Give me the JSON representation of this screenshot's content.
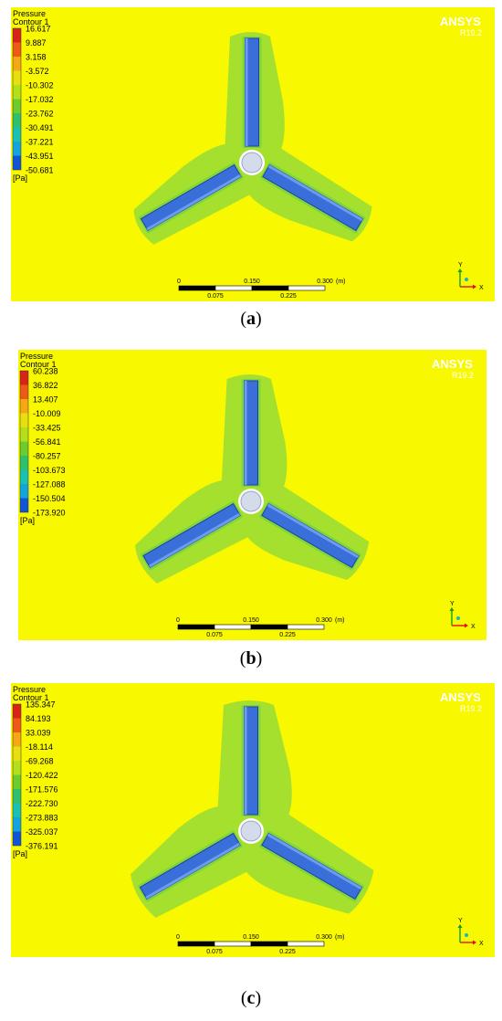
{
  "brand": "ANSYS",
  "version": "R19.2",
  "colors": {
    "background": "#f8f800",
    "halo": "#a6e02e",
    "halo_inner": "#7dd63a",
    "blade": "#3a6fd9",
    "blade_edge": "#1f3fa8",
    "hub": "#d4dcec",
    "legend": [
      "#d8231b",
      "#ee5a16",
      "#f5a716",
      "#e7df10",
      "#b3e01e",
      "#6ccb2e",
      "#2fc06d",
      "#1ac0b3",
      "#12a4df",
      "#1155d6",
      "#1515b7"
    ]
  },
  "legend_title": "Pressure",
  "legend_subtitle": "Contour 1",
  "legend_unit": "[Pa]",
  "scale": {
    "top_labels": [
      "0",
      "0.150",
      "0.300"
    ],
    "unit": "(m)",
    "bottom_labels": [
      "0.075",
      "0.225"
    ]
  },
  "axis": {
    "x": "X",
    "y": "Y"
  },
  "panels": [
    {
      "id": "a",
      "caption_pre": "(",
      "caption_letter": "a",
      "caption_post": ")",
      "levels": [
        "16.617",
        "9.887",
        "3.158",
        "-3.572",
        "-10.302",
        "-17.032",
        "-23.762",
        "-30.491",
        "-37.221",
        "-43.951",
        "-50.681"
      ]
    },
    {
      "id": "b",
      "caption_pre": "(",
      "caption_letter": "b",
      "caption_post": ")",
      "levels": [
        "60.238",
        "36.822",
        "13.407",
        "-10.009",
        "-33.425",
        "-56.841",
        "-80.257",
        "-103.673",
        "-127.088",
        "-150.504",
        "-173.920"
      ]
    },
    {
      "id": "c",
      "caption_pre": "(",
      "caption_letter": "c",
      "caption_post": ")",
      "levels": [
        "135.347",
        "84.193",
        "33.039",
        "-18.114",
        "-69.268",
        "-120.422",
        "-171.576",
        "-222.730",
        "-273.883",
        "-325.037",
        "-376.191"
      ]
    }
  ]
}
